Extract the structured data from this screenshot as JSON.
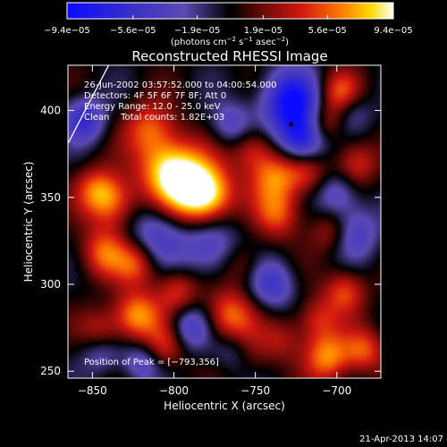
{
  "chart_data": {
    "type": "heatmap",
    "title": "Reconstructed RHESSI Image",
    "xlabel": "Heliocentric X (arcsec)",
    "ylabel": "Heliocentric Y (arcsec)",
    "xlim": [
      -865,
      -673
    ],
    "ylim": [
      246,
      426
    ],
    "x_ticks": [
      {
        "value": -850,
        "label": "−850"
      },
      {
        "value": -800,
        "label": "−800"
      },
      {
        "value": -750,
        "label": "−750"
      },
      {
        "value": -700,
        "label": "−700"
      }
    ],
    "y_ticks": [
      {
        "value": 250,
        "label": "250"
      },
      {
        "value": 300,
        "label": "300"
      },
      {
        "value": 350,
        "label": "350"
      },
      {
        "value": 400,
        "label": "400"
      }
    ],
    "colorbar": {
      "range": [
        -9.4e-05,
        9.4e-05
      ],
      "ticks": [
        {
          "value": -9.4e-05,
          "label": "−9.4e−05"
        },
        {
          "value": -5.6e-05,
          "label": "−5.6e−05"
        },
        {
          "value": -1.9e-05,
          "label": "−1.9e−05"
        },
        {
          "value": 1.9e-05,
          "label": "1.9e−05"
        },
        {
          "value": 5.6e-05,
          "label": "5.6e−05"
        },
        {
          "value": 9.4e-05,
          "label": "9.4e−05"
        }
      ],
      "unit_parts": [
        "(photons cm",
        "−2",
        " s",
        "−1",
        " asec",
        "−2",
        ")"
      ]
    },
    "annotations": [
      "26-Jun-2002 03:57:52.000 to 04:00:54.000",
      "Detectors: 4F 5F 6F 7F 8F; Att 0",
      "Energy Range: 12.0 - 25.0 keV",
      "Clean    Total counts: 1.82E+03"
    ],
    "peak_label": "Position of Peak = [−793,356]",
    "peak": [
      -793,
      356
    ],
    "blobs": [
      {
        "x": -790,
        "y": 355,
        "v": 9.4e-05,
        "r": 16
      },
      {
        "x": -805,
        "y": 368,
        "v": 6e-05,
        "r": 14
      },
      {
        "x": -778,
        "y": 350,
        "v": 5e-05,
        "r": 12
      },
      {
        "x": -815,
        "y": 390,
        "v": 5e-05,
        "r": 12
      },
      {
        "x": -838,
        "y": 347,
        "v": 6e-05,
        "r": 12
      },
      {
        "x": -848,
        "y": 355,
        "v": 4e-05,
        "r": 10
      },
      {
        "x": -843,
        "y": 318,
        "v": 5.5e-05,
        "r": 11
      },
      {
        "x": -823,
        "y": 312,
        "v": 5e-05,
        "r": 10
      },
      {
        "x": -823,
        "y": 282,
        "v": 7e-05,
        "r": 11
      },
      {
        "x": -845,
        "y": 272,
        "v": 4.5e-05,
        "r": 10
      },
      {
        "x": -805,
        "y": 265,
        "v": 4e-05,
        "r": 10
      },
      {
        "x": -798,
        "y": 296,
        "v": 4.5e-05,
        "r": 10
      },
      {
        "x": -766,
        "y": 282,
        "v": 6e-05,
        "r": 12
      },
      {
        "x": -758,
        "y": 262,
        "v": 5e-05,
        "r": 11
      },
      {
        "x": -733,
        "y": 268,
        "v": 3e-05,
        "r": 10
      },
      {
        "x": -706,
        "y": 258,
        "v": 6.5e-05,
        "r": 11
      },
      {
        "x": -683,
        "y": 262,
        "v": 5e-05,
        "r": 10
      },
      {
        "x": -712,
        "y": 280,
        "v": 4e-05,
        "r": 10
      },
      {
        "x": -695,
        "y": 296,
        "v": 5e-05,
        "r": 10
      },
      {
        "x": -703,
        "y": 330,
        "v": 4e-05,
        "r": 10
      },
      {
        "x": -736,
        "y": 340,
        "v": 5e-05,
        "r": 11
      },
      {
        "x": -738,
        "y": 362,
        "v": 6e-05,
        "r": 12
      },
      {
        "x": -752,
        "y": 378,
        "v": 4e-05,
        "r": 10
      },
      {
        "x": -718,
        "y": 365,
        "v": 4e-05,
        "r": 10
      },
      {
        "x": -688,
        "y": 370,
        "v": 4.5e-05,
        "r": 10
      },
      {
        "x": -698,
        "y": 410,
        "v": 5.5e-05,
        "r": 10
      },
      {
        "x": -708,
        "y": 392,
        "v": 4e-05,
        "r": 9
      },
      {
        "x": -758,
        "y": 312,
        "v": 3e-05,
        "r": 10
      },
      {
        "x": -778,
        "y": 322,
        "v": -5e-05,
        "r": 14
      },
      {
        "x": -810,
        "y": 330,
        "v": -5e-05,
        "r": 14
      },
      {
        "x": -728,
        "y": 405,
        "v": -9e-05,
        "r": 14
      },
      {
        "x": -721,
        "y": 383,
        "v": -8e-05,
        "r": 11
      },
      {
        "x": -762,
        "y": 262,
        "v": -6e-05,
        "r": 10
      },
      {
        "x": -740,
        "y": 300,
        "v": -5e-05,
        "r": 11
      },
      {
        "x": -690,
        "y": 330,
        "v": -5e-05,
        "r": 12
      },
      {
        "x": -855,
        "y": 395,
        "v": -6e-05,
        "r": 10
      },
      {
        "x": -845,
        "y": 262,
        "v": -4e-05,
        "r": 10
      },
      {
        "x": -790,
        "y": 275,
        "v": -5e-05,
        "r": 10
      },
      {
        "x": -700,
        "y": 352,
        "v": -4e-05,
        "r": 10
      },
      {
        "x": -765,
        "y": 392,
        "v": -4e-05,
        "r": 10
      },
      {
        "x": -820,
        "y": 255,
        "v": -4e-05,
        "r": 9
      },
      {
        "x": -690,
        "y": 400,
        "v": -3e-05,
        "r": 9
      }
    ]
  },
  "limb": [
    [
      -865,
      381
    ],
    [
      -840,
      426
    ]
  ],
  "footer": {
    "timestamp": "21-Apr-2013 14:07"
  }
}
